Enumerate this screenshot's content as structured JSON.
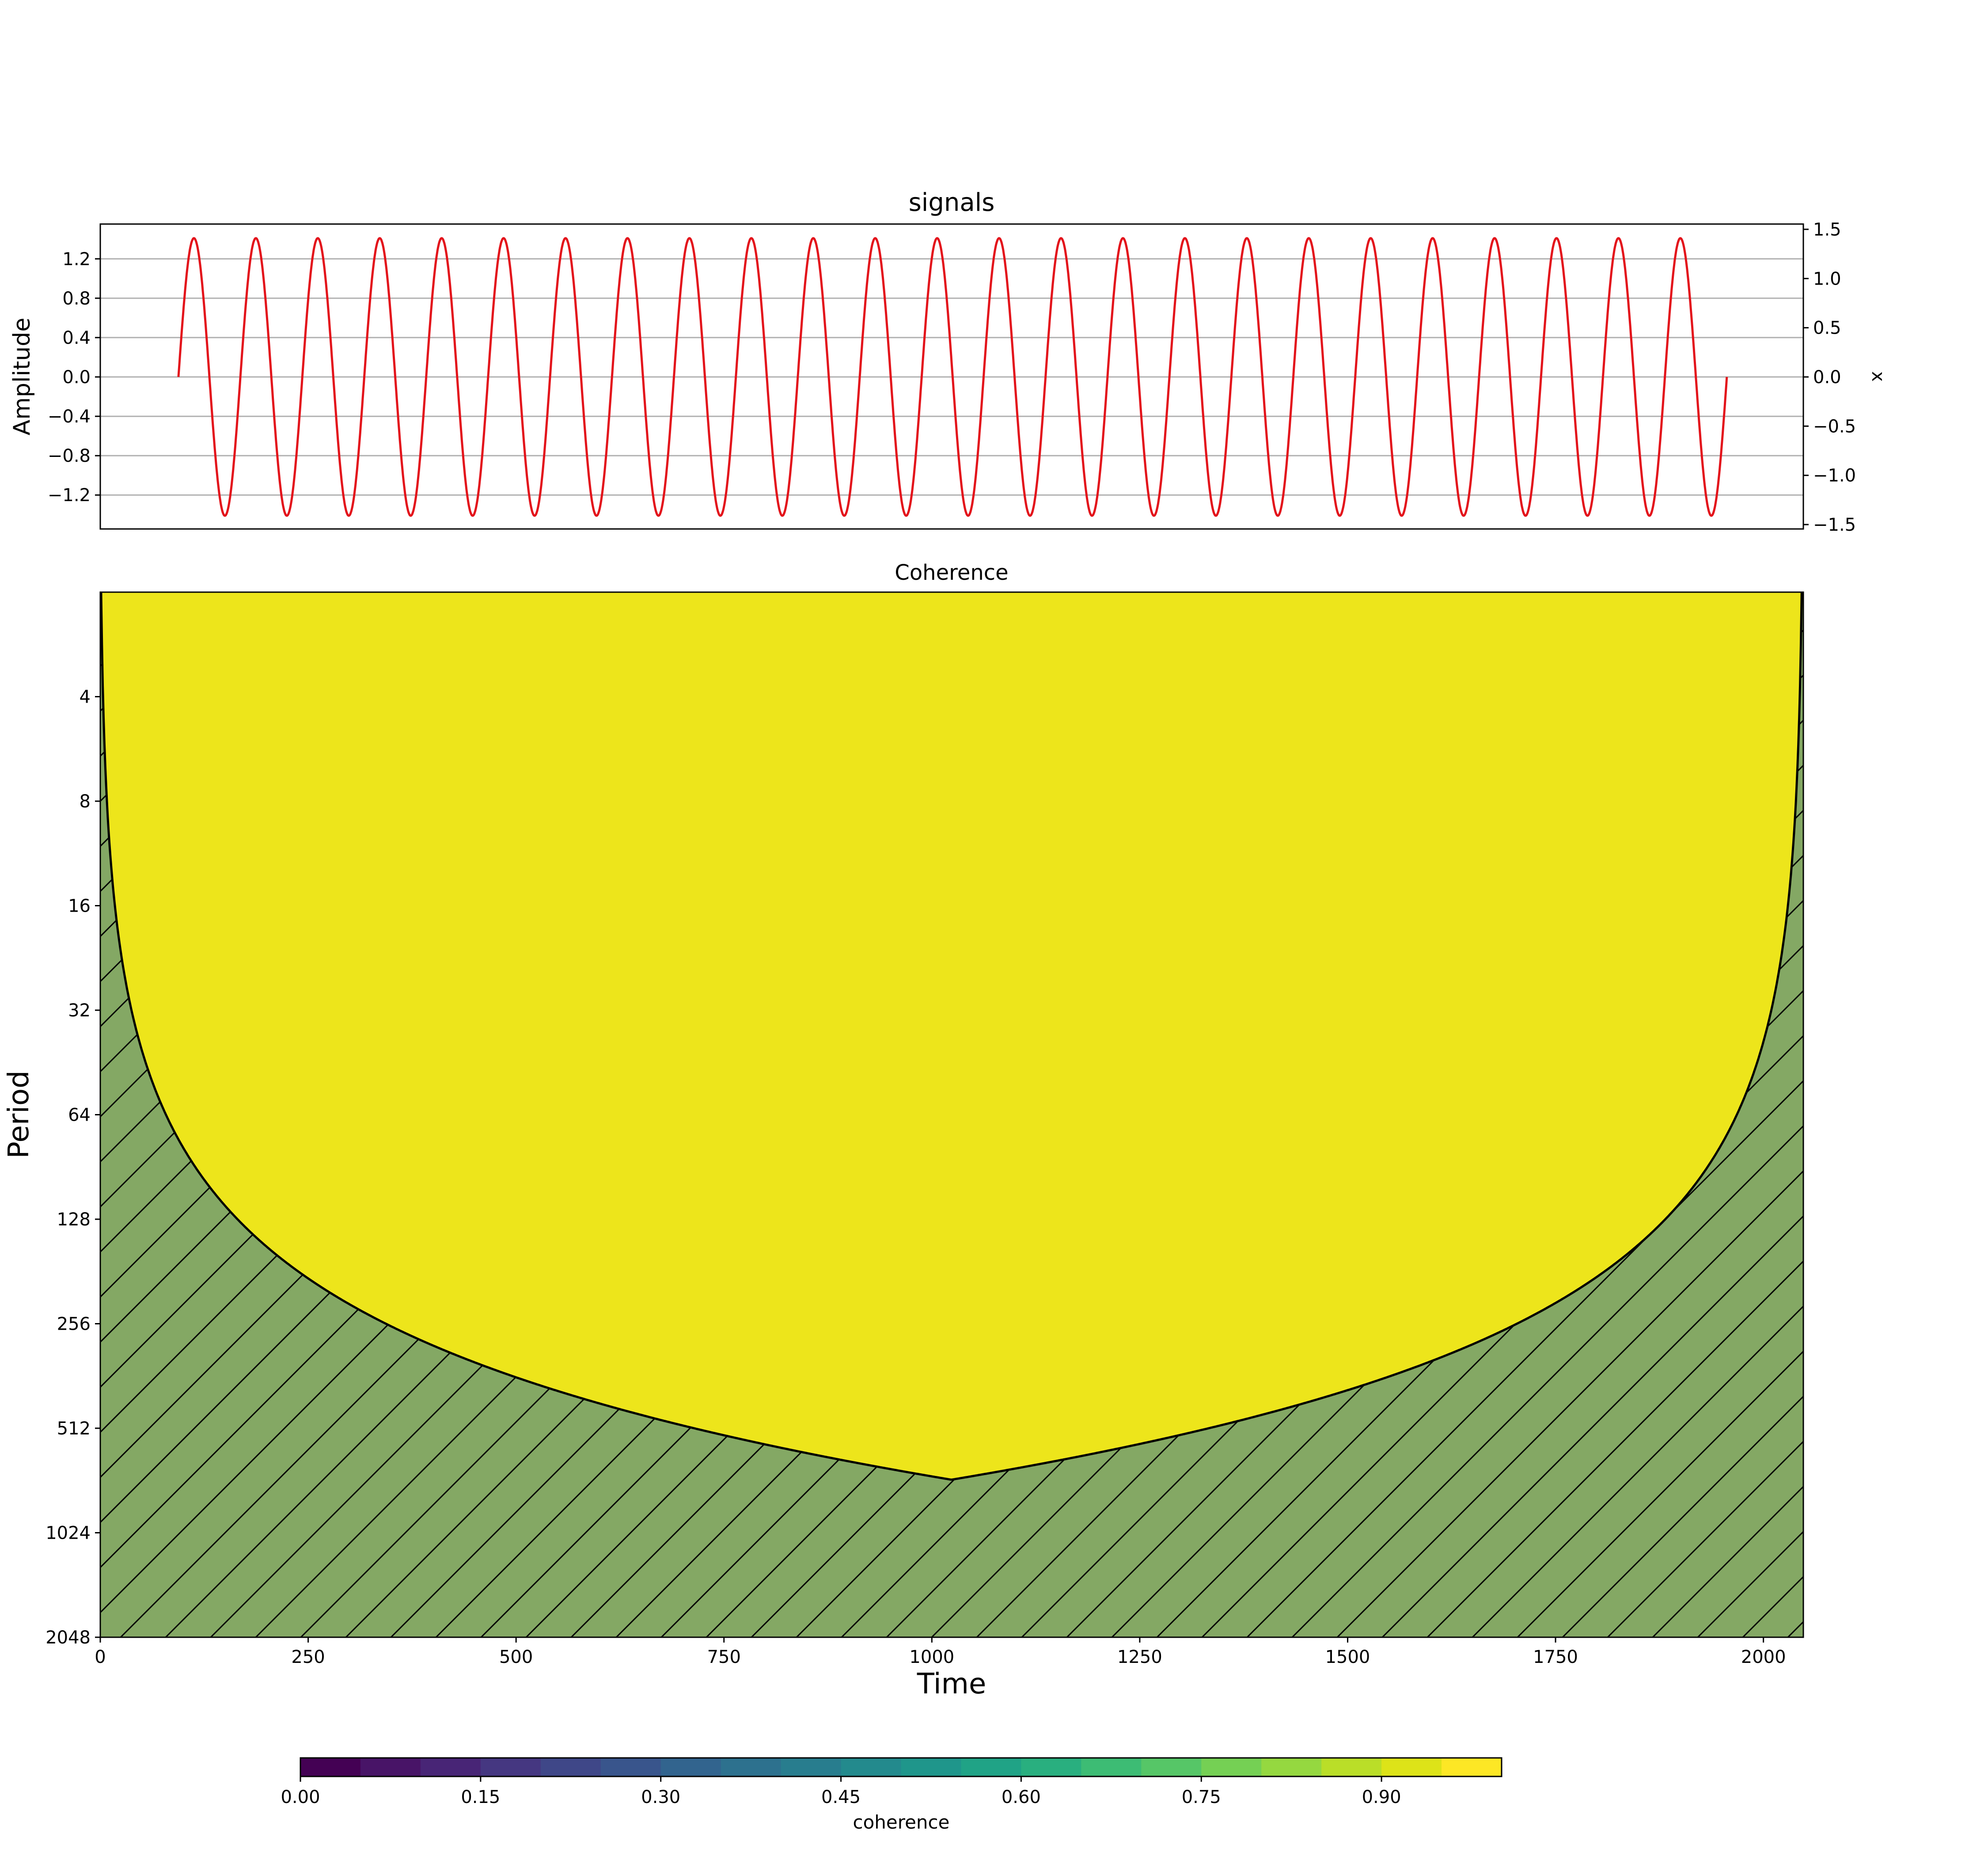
{
  "chart_data": [
    {
      "type": "line",
      "title": "signals",
      "ylabel": "Amplitude",
      "ylabel_right": "x",
      "ylim": [
        -1.5,
        1.55
      ],
      "ylim_right": [
        -1.5,
        1.55
      ],
      "yticks": [
        "1.2",
        "0.8",
        "0.4",
        "0.0",
        "−0.4",
        "−0.8",
        "−1.2"
      ],
      "yticks_right": [
        "1.5",
        "1.0",
        "0.5",
        "0.0",
        "−0.5",
        "−1.0",
        "−1.5"
      ],
      "grid": "horizontal",
      "series": [
        {
          "amplitude": 1.41,
          "cycles": 25,
          "t_start": 94,
          "t_end": 1956,
          "color": "#e3131b"
        }
      ]
    },
    {
      "type": "heatmap",
      "title": "Coherence",
      "xlabel": "Time",
      "ylabel": "Period",
      "xlim": [
        0,
        2048
      ],
      "ylim": [
        2048,
        2
      ],
      "yscale": "log2",
      "xticks": [
        "0",
        "250",
        "500",
        "750",
        "1000",
        "1250",
        "1500",
        "1750",
        "2000"
      ],
      "yticks": [
        "4",
        "8",
        "16",
        "32",
        "64",
        "128",
        "256",
        "512",
        "1024",
        "2048"
      ],
      "coherence_value": 1.0,
      "fill_color": "#ede51b",
      "cone_of_influence": {
        "description_values": "period = (t+1) left of center, (2048-t) right of center",
        "peak_time": 1024,
        "peak_period": 720,
        "fill_color": "#84a864",
        "hatch": "/"
      }
    },
    {
      "type": "colorbar",
      "label": "coherence",
      "range": [
        0.0,
        1.0
      ],
      "ticks": [
        "0.00",
        "0.15",
        "0.30",
        "0.45",
        "0.60",
        "0.75",
        "0.90"
      ],
      "levels": 20,
      "colors": [
        "#440154",
        "#481467",
        "#482576",
        "#453781",
        "#3f4788",
        "#39558c",
        "#32648e",
        "#2d718e",
        "#287d8e",
        "#238a8d",
        "#1f968b",
        "#20a386",
        "#29af7f",
        "#3dbc74",
        "#56c667",
        "#75d054",
        "#95d840",
        "#bade28",
        "#dde318",
        "#fde725"
      ]
    }
  ]
}
